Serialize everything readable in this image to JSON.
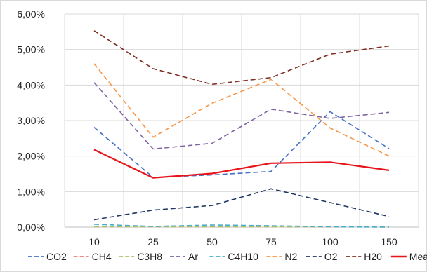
{
  "chart_data": {
    "type": "line",
    "categories": [
      "10",
      "25",
      "50",
      "75",
      "100",
      "150"
    ],
    "ylim": [
      0,
      0.06
    ],
    "yticks": [
      "0,00%",
      "1,00%",
      "2,00%",
      "3,00%",
      "4,00%",
      "5,00%",
      "6,00%"
    ],
    "grid": true,
    "legend_position": "bottom",
    "series": [
      {
        "name": "CO2",
        "color": "#4472c4",
        "dash": true,
        "values": [
          0.0281,
          0.014,
          0.0147,
          0.0157,
          0.0325,
          0.0221
        ]
      },
      {
        "name": "CH4",
        "color": "#ed7d7d",
        "dash": true,
        "values": [
          0.0001,
          0.0001,
          0.0001,
          0.0001,
          0.0001,
          0.0001
        ]
      },
      {
        "name": "C3H8",
        "color": "#a5c26a",
        "dash": true,
        "values": [
          0.0001,
          0.0001,
          0.0001,
          0.0001,
          0.0001,
          0.0001
        ]
      },
      {
        "name": "Ar",
        "color": "#8064a2",
        "dash": true,
        "values": [
          0.0407,
          0.022,
          0.0236,
          0.0332,
          0.0306,
          0.0323
        ]
      },
      {
        "name": "C4H10",
        "color": "#4bacc6",
        "dash": true,
        "values": [
          0.0008,
          0.0002,
          0.0006,
          0.0004,
          0.0001,
          0.0
        ]
      },
      {
        "name": "N2",
        "color": "#f79646",
        "dash": true,
        "values": [
          0.046,
          0.0253,
          0.0349,
          0.0416,
          0.0279,
          0.02
        ]
      },
      {
        "name": "O2",
        "color": "#1f3864",
        "dash": true,
        "values": [
          0.0021,
          0.0048,
          0.0061,
          0.0108,
          0.0069,
          0.003
        ]
      },
      {
        "name": "H20",
        "color": "#7f2f25",
        "dash": true,
        "values": [
          0.0553,
          0.0446,
          0.0402,
          0.0421,
          0.0487,
          0.051
        ]
      },
      {
        "name": "Mean",
        "color": "#e8141b",
        "dash": false,
        "values": [
          0.0218,
          0.0139,
          0.0151,
          0.018,
          0.0183,
          0.016
        ]
      }
    ]
  }
}
